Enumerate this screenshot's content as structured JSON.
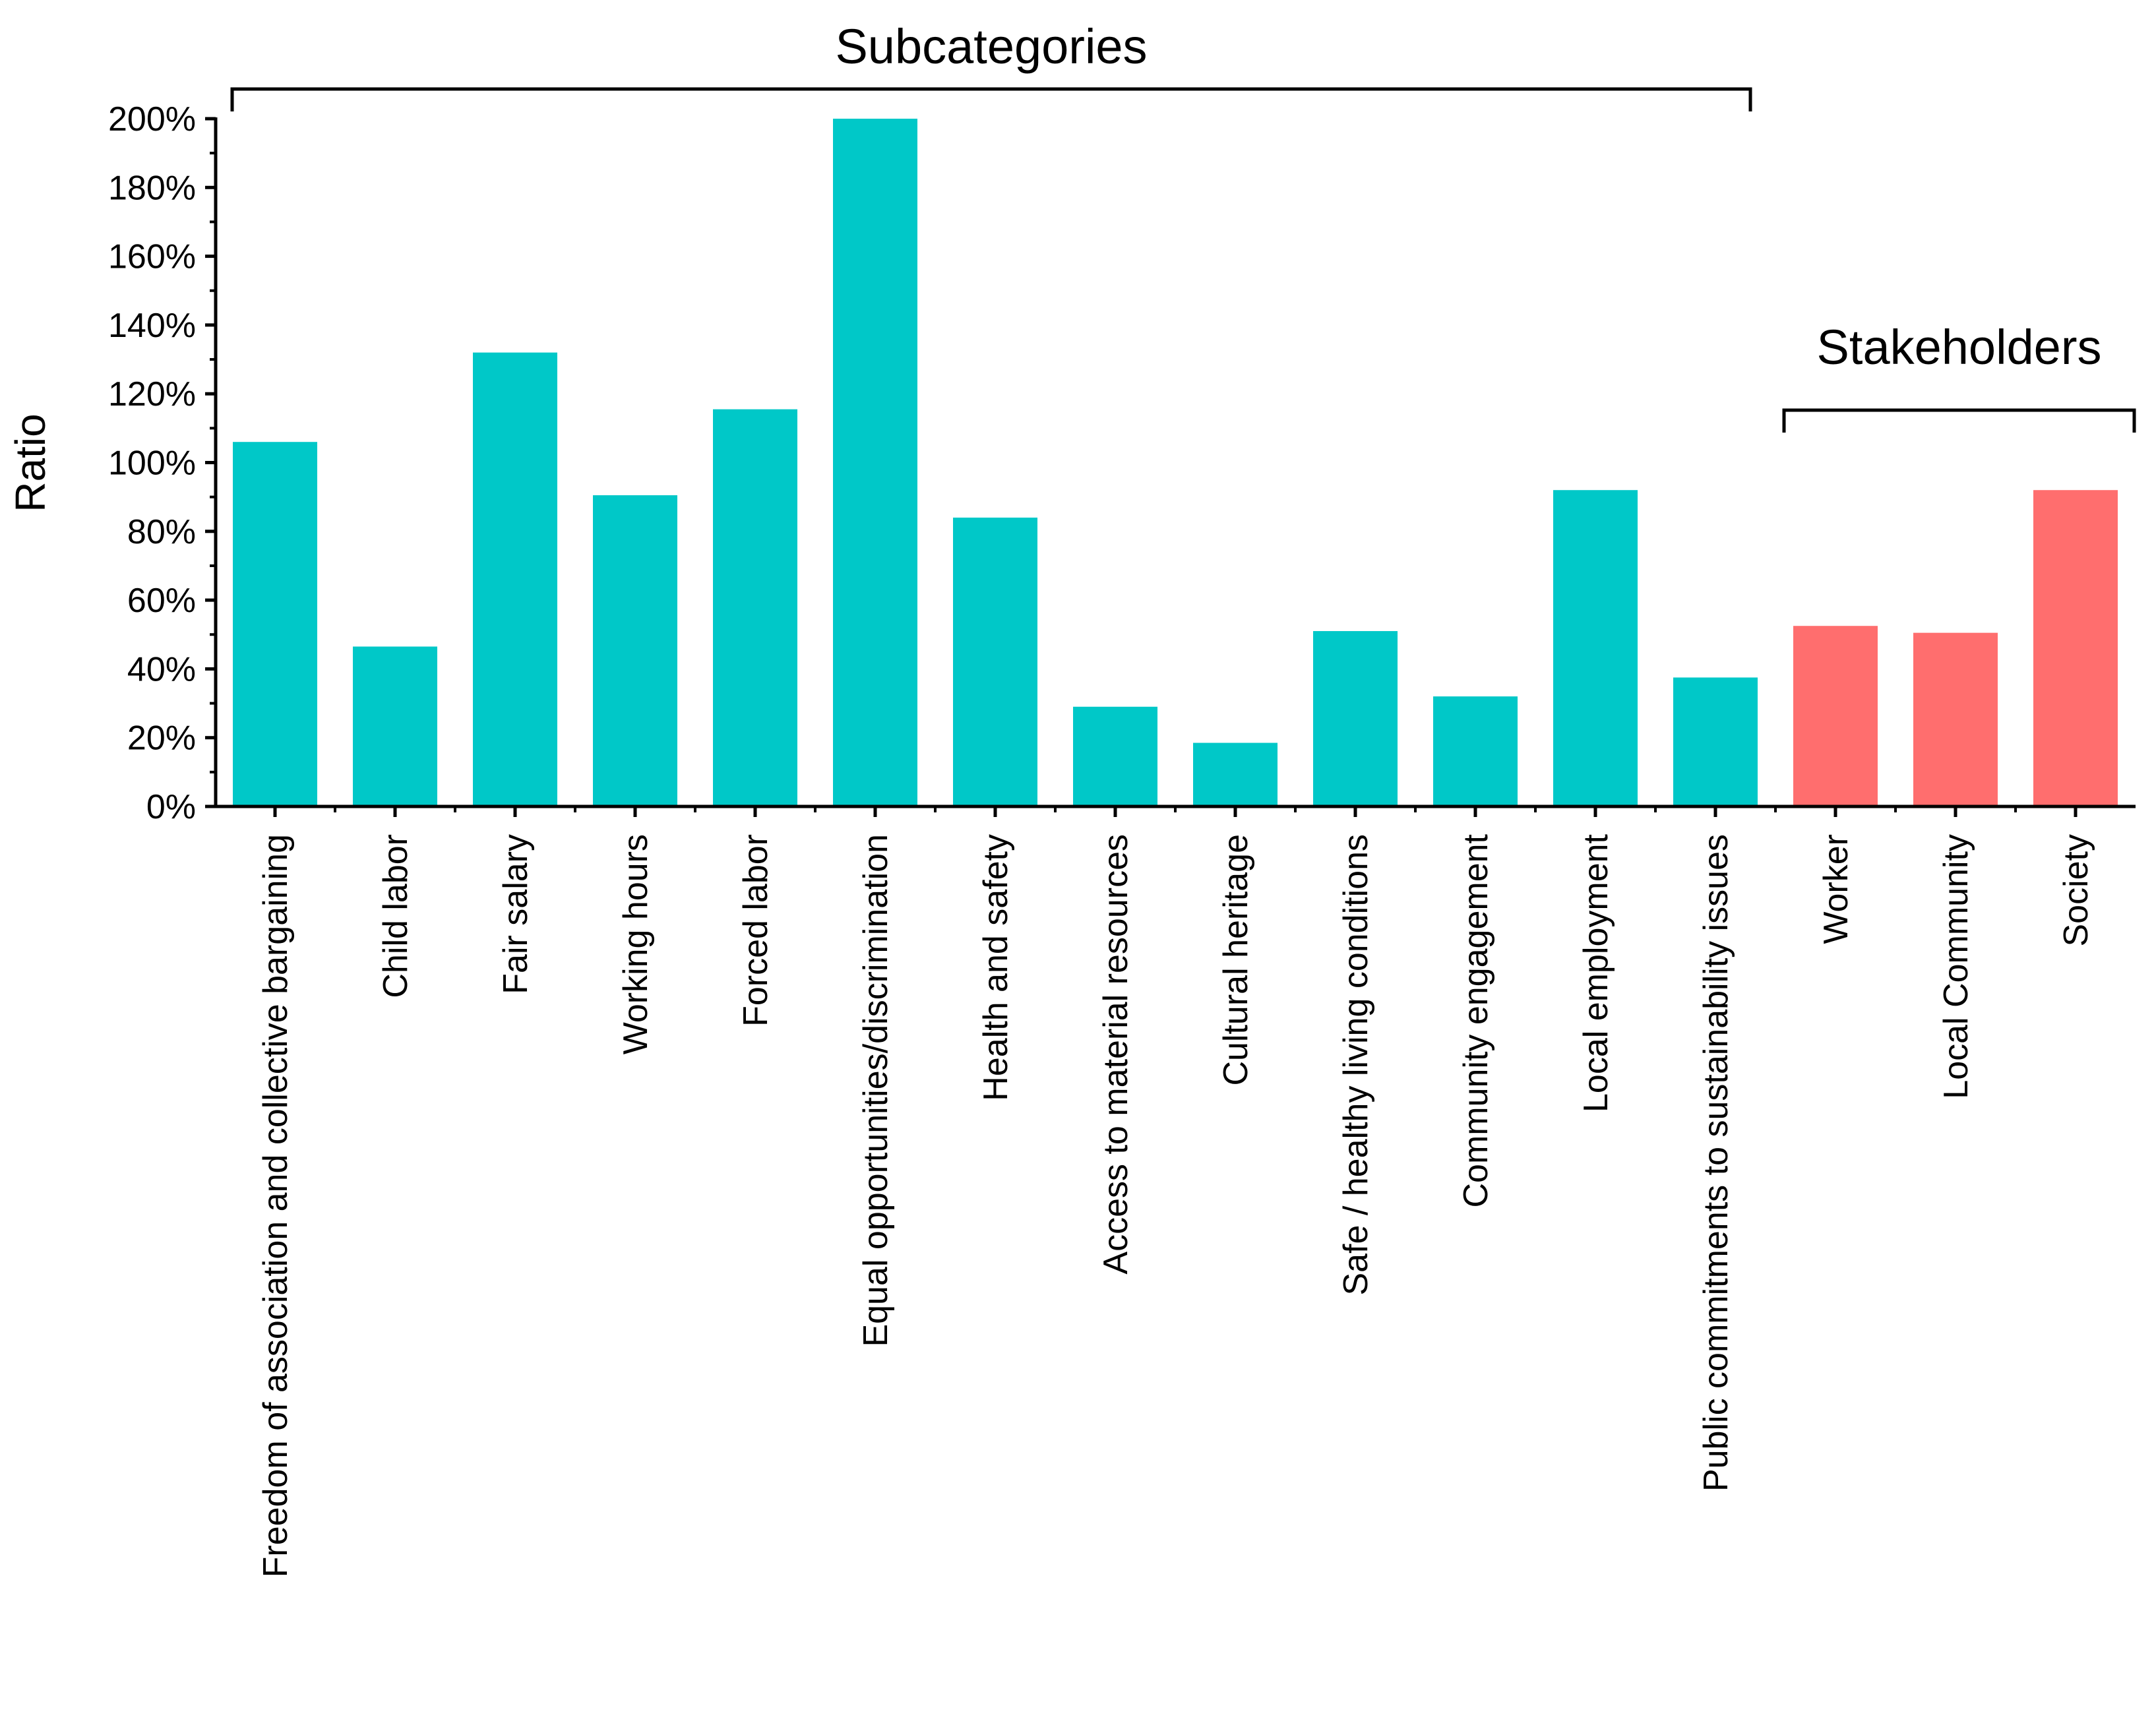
{
  "chart_data": {
    "type": "bar",
    "ylabel": "Ratio",
    "ylim": [
      0,
      200
    ],
    "ytick_step": 20,
    "ytick_labels": [
      "0%",
      "20%",
      "40%",
      "60%",
      "80%",
      "100%",
      "120%",
      "140%",
      "160%",
      "180%",
      "200%"
    ],
    "categories": [
      "Freedom of association and collective bargaining",
      "Child labor",
      "Fair salary",
      "Working hours",
      "Forced labor",
      "Equal opportunities/discrimination",
      "Health and safety",
      "Access to material resources",
      "Cultural heritage",
      "Safe / healthy living conditions",
      "Community engagement",
      "Local employment",
      "Public commitments to sustainability issues",
      "Worker",
      "Local Community",
      "Society"
    ],
    "values": [
      106,
      46.5,
      132,
      90.5,
      115.5,
      200,
      84,
      29,
      18.5,
      51,
      32,
      92,
      37.5,
      52.5,
      50.5,
      92
    ],
    "groups": [
      {
        "name": "Subcategories",
        "start": 0,
        "end": 12,
        "color": "#00C8C8"
      },
      {
        "name": "Stakeholders",
        "start": 13,
        "end": 15,
        "color": "#FF6E6E"
      }
    ]
  }
}
